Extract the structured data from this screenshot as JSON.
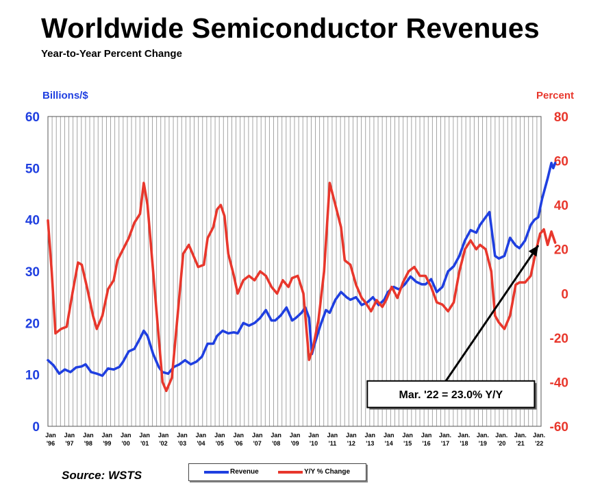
{
  "chart_data": {
    "type": "line",
    "title": "Worldwide Semiconductor Revenues",
    "subtitle": "Year-to-Year Percent Change",
    "y_left_label": "Billions/$",
    "y_right_label": "Percent",
    "y_left_range": [
      0,
      60
    ],
    "y_left_ticks": [
      "0",
      "10",
      "20",
      "30",
      "40",
      "50",
      "60"
    ],
    "y_right_range": [
      -60,
      80
    ],
    "y_right_ticks": [
      "-60",
      "-40",
      "-20",
      "0",
      "20",
      "40",
      "60",
      "80"
    ],
    "x_range": [
      1996.0,
      2022.25
    ],
    "x_tick_labels": [
      {
        "x": 1996,
        "top": "Jan",
        "bottom": "'96"
      },
      {
        "x": 1997,
        "top": "Jan",
        "bottom": "'97"
      },
      {
        "x": 1998,
        "top": "Jan",
        "bottom": "'98"
      },
      {
        "x": 1999,
        "top": "Jan",
        "bottom": "'99"
      },
      {
        "x": 2000,
        "top": "Jan",
        "bottom": "'00"
      },
      {
        "x": 2001,
        "top": "Jan",
        "bottom": "'01"
      },
      {
        "x": 2002,
        "top": "Jan",
        "bottom": "'02"
      },
      {
        "x": 2003,
        "top": "Jan",
        "bottom": "'03"
      },
      {
        "x": 2004,
        "top": "Jan",
        "bottom": "'04"
      },
      {
        "x": 2005,
        "top": "Jan",
        "bottom": "'05"
      },
      {
        "x": 2006,
        "top": "Jan",
        "bottom": "'06"
      },
      {
        "x": 2007,
        "top": "Jan",
        "bottom": "'07"
      },
      {
        "x": 2008,
        "top": "Jan",
        "bottom": "'08"
      },
      {
        "x": 2009,
        "top": "Jan",
        "bottom": "'09"
      },
      {
        "x": 2010,
        "top": "Jan",
        "bottom": "'10"
      },
      {
        "x": 2011,
        "top": "Jan",
        "bottom": "'11"
      },
      {
        "x": 2012,
        "top": "Jan",
        "bottom": "'12"
      },
      {
        "x": 2013,
        "top": "Jan",
        "bottom": "'13"
      },
      {
        "x": 2014,
        "top": "Jan",
        "bottom": "'14"
      },
      {
        "x": 2015,
        "top": "Jan",
        "bottom": "'15"
      },
      {
        "x": 2016,
        "top": "Jan",
        "bottom": "'16"
      },
      {
        "x": 2017,
        "top": "Jan.",
        "bottom": "'17"
      },
      {
        "x": 2018,
        "top": "Jan.",
        "bottom": "'18"
      },
      {
        "x": 2019,
        "top": "Jan.",
        "bottom": "'19"
      },
      {
        "x": 2020,
        "top": "Jan.",
        "bottom": "'20"
      },
      {
        "x": 2021,
        "top": "Jan.",
        "bottom": "'21"
      },
      {
        "x": 2022,
        "top": "Jan.",
        "bottom": "'22"
      }
    ],
    "grid": "vertical",
    "colors": {
      "revenue": "#1f3fe0",
      "yoy": "#e8372c",
      "left_axis": "#1f3fe0",
      "right_axis": "#e8372c",
      "grid": "#9a9a9a"
    },
    "series": [
      {
        "name": "Revenue",
        "axis": "left",
        "points": [
          [
            1996.0,
            12.8
          ],
          [
            1996.3,
            11.8
          ],
          [
            1996.6,
            10.2
          ],
          [
            1996.9,
            11.0
          ],
          [
            1997.2,
            10.5
          ],
          [
            1997.5,
            11.4
          ],
          [
            1997.8,
            11.6
          ],
          [
            1998.0,
            12.0
          ],
          [
            1998.3,
            10.5
          ],
          [
            1998.6,
            10.2
          ],
          [
            1998.9,
            9.8
          ],
          [
            1999.2,
            11.2
          ],
          [
            1999.5,
            11.0
          ],
          [
            1999.8,
            11.5
          ],
          [
            2000.0,
            12.5
          ],
          [
            2000.3,
            14.5
          ],
          [
            2000.6,
            15.0
          ],
          [
            2000.9,
            17.0
          ],
          [
            2001.1,
            18.5
          ],
          [
            2001.3,
            17.5
          ],
          [
            2001.6,
            14.0
          ],
          [
            2001.9,
            11.5
          ],
          [
            2002.1,
            10.5
          ],
          [
            2002.4,
            10.2
          ],
          [
            2002.7,
            11.5
          ],
          [
            2003.0,
            12.0
          ],
          [
            2003.3,
            12.8
          ],
          [
            2003.6,
            12.0
          ],
          [
            2003.9,
            12.5
          ],
          [
            2004.2,
            13.5
          ],
          [
            2004.5,
            16.0
          ],
          [
            2004.8,
            16.0
          ],
          [
            2005.0,
            17.5
          ],
          [
            2005.3,
            18.5
          ],
          [
            2005.6,
            18.0
          ],
          [
            2005.9,
            18.2
          ],
          [
            2006.1,
            18.0
          ],
          [
            2006.4,
            20.0
          ],
          [
            2006.7,
            19.5
          ],
          [
            2007.0,
            20.0
          ],
          [
            2007.3,
            21.0
          ],
          [
            2007.6,
            22.5
          ],
          [
            2007.9,
            20.5
          ],
          [
            2008.1,
            20.5
          ],
          [
            2008.4,
            21.5
          ],
          [
            2008.7,
            23.0
          ],
          [
            2009.0,
            20.5
          ],
          [
            2009.2,
            21.0
          ],
          [
            2009.5,
            22.0
          ],
          [
            2009.7,
            23.0
          ],
          [
            2009.9,
            21.0
          ],
          [
            2010.05,
            14.0
          ],
          [
            2010.2,
            16.0
          ],
          [
            2010.5,
            19.5
          ],
          [
            2010.8,
            22.5
          ],
          [
            2011.0,
            22.0
          ],
          [
            2011.3,
            24.5
          ],
          [
            2011.6,
            26.0
          ],
          [
            2011.9,
            25.0
          ],
          [
            2012.1,
            24.5
          ],
          [
            2012.4,
            25.0
          ],
          [
            2012.7,
            23.5
          ],
          [
            2013.0,
            24.0
          ],
          [
            2013.3,
            25.0
          ],
          [
            2013.6,
            23.5
          ],
          [
            2013.9,
            24.5
          ],
          [
            2014.1,
            26.0
          ],
          [
            2014.4,
            27.0
          ],
          [
            2014.7,
            26.5
          ],
          [
            2015.0,
            27.5
          ],
          [
            2015.3,
            29.0
          ],
          [
            2015.6,
            28.0
          ],
          [
            2015.9,
            27.5
          ],
          [
            2016.1,
            27.5
          ],
          [
            2016.4,
            28.5
          ],
          [
            2016.7,
            26.0
          ],
          [
            2017.0,
            27.0
          ],
          [
            2017.3,
            30.0
          ],
          [
            2017.6,
            31.0
          ],
          [
            2017.9,
            33.0
          ],
          [
            2018.2,
            36.0
          ],
          [
            2018.5,
            38.0
          ],
          [
            2018.8,
            37.5
          ],
          [
            2019.0,
            39.0
          ],
          [
            2019.3,
            40.5
          ],
          [
            2019.5,
            41.5
          ],
          [
            2019.8,
            33.0
          ],
          [
            2020.0,
            32.5
          ],
          [
            2020.3,
            33.0
          ],
          [
            2020.6,
            36.5
          ],
          [
            2020.9,
            35.0
          ],
          [
            2021.1,
            34.5
          ],
          [
            2021.4,
            36.0
          ],
          [
            2021.7,
            39.0
          ],
          [
            2021.9,
            40.0
          ],
          [
            2022.1,
            40.5
          ],
          [
            2022.3,
            44.0
          ],
          [
            2022.6,
            48.0
          ],
          [
            2022.8,
            51.0
          ],
          [
            2022.9,
            50.0
          ],
          [
            2023.0,
            51.0
          ]
        ]
      },
      {
        "name": "Y/Y % Change",
        "axis": "right",
        "points": [
          [
            1996.0,
            33
          ],
          [
            1996.2,
            10
          ],
          [
            1996.4,
            -18
          ],
          [
            1996.7,
            -16
          ],
          [
            1997.0,
            -15
          ],
          [
            1997.3,
            0
          ],
          [
            1997.6,
            14
          ],
          [
            1997.8,
            13
          ],
          [
            1998.1,
            2
          ],
          [
            1998.4,
            -10
          ],
          [
            1998.6,
            -16
          ],
          [
            1998.9,
            -10
          ],
          [
            1999.2,
            2
          ],
          [
            1999.5,
            6
          ],
          [
            1999.7,
            15
          ],
          [
            2000.0,
            20
          ],
          [
            2000.3,
            25
          ],
          [
            2000.6,
            32
          ],
          [
            2000.9,
            36
          ],
          [
            2001.1,
            50
          ],
          [
            2001.3,
            40
          ],
          [
            2001.6,
            10
          ],
          [
            2001.9,
            -20
          ],
          [
            2002.1,
            -40
          ],
          [
            2002.3,
            -44
          ],
          [
            2002.6,
            -38
          ],
          [
            2002.9,
            -10
          ],
          [
            2003.2,
            18
          ],
          [
            2003.5,
            22
          ],
          [
            2003.7,
            18
          ],
          [
            2004.0,
            12
          ],
          [
            2004.3,
            13
          ],
          [
            2004.5,
            25
          ],
          [
            2004.8,
            30
          ],
          [
            2005.0,
            38
          ],
          [
            2005.2,
            40
          ],
          [
            2005.4,
            35
          ],
          [
            2005.6,
            18
          ],
          [
            2005.9,
            8
          ],
          [
            2006.1,
            0
          ],
          [
            2006.4,
            6
          ],
          [
            2006.7,
            8
          ],
          [
            2007.0,
            6
          ],
          [
            2007.3,
            10
          ],
          [
            2007.6,
            8
          ],
          [
            2007.9,
            3
          ],
          [
            2008.2,
            0
          ],
          [
            2008.5,
            6
          ],
          [
            2008.8,
            3
          ],
          [
            2009.0,
            7
          ],
          [
            2009.3,
            8
          ],
          [
            2009.6,
            0
          ],
          [
            2009.9,
            -30
          ],
          [
            2010.1,
            -25
          ],
          [
            2010.4,
            -12
          ],
          [
            2010.7,
            10
          ],
          [
            2011.0,
            50
          ],
          [
            2011.3,
            40
          ],
          [
            2011.6,
            30
          ],
          [
            2011.8,
            15
          ],
          [
            2012.1,
            13
          ],
          [
            2012.4,
            4
          ],
          [
            2012.7,
            -2
          ],
          [
            2012.9,
            -4
          ],
          [
            2013.2,
            -8
          ],
          [
            2013.5,
            -3
          ],
          [
            2013.8,
            -6
          ],
          [
            2014.0,
            -3
          ],
          [
            2014.3,
            3
          ],
          [
            2014.6,
            -2
          ],
          [
            2014.9,
            5
          ],
          [
            2015.2,
            10
          ],
          [
            2015.5,
            12
          ],
          [
            2015.8,
            8
          ],
          [
            2016.1,
            8
          ],
          [
            2016.4,
            3
          ],
          [
            2016.7,
            -4
          ],
          [
            2017.0,
            -5
          ],
          [
            2017.3,
            -8
          ],
          [
            2017.6,
            -4
          ],
          [
            2017.9,
            10
          ],
          [
            2018.2,
            20
          ],
          [
            2018.5,
            24
          ],
          [
            2018.8,
            20
          ],
          [
            2019.0,
            22
          ],
          [
            2019.3,
            20
          ],
          [
            2019.6,
            10
          ],
          [
            2019.8,
            -10
          ],
          [
            2020.0,
            -13
          ],
          [
            2020.3,
            -16
          ],
          [
            2020.6,
            -10
          ],
          [
            2020.9,
            4
          ],
          [
            2021.1,
            5
          ],
          [
            2021.4,
            5
          ],
          [
            2021.7,
            8
          ],
          [
            2022.0,
            20
          ],
          [
            2022.2,
            27
          ],
          [
            2022.4,
            29
          ],
          [
            2022.6,
            22
          ],
          [
            2022.8,
            28
          ],
          [
            2023.0,
            23
          ]
        ]
      }
    ],
    "annotation": {
      "text": "Mar. '22 = 23.0% Y/Y",
      "target": [
        2022.25,
        23.0
      ],
      "box_x_data": [
        2013.0,
        2021.9
      ],
      "box_y_data": [
        -39.5,
        -51.5
      ]
    },
    "legend": {
      "position": "bottom-center"
    }
  },
  "source": "Source: WSTS",
  "legend_labels": {
    "revenue": "Revenue",
    "yoy": "Y/Y % Change"
  }
}
